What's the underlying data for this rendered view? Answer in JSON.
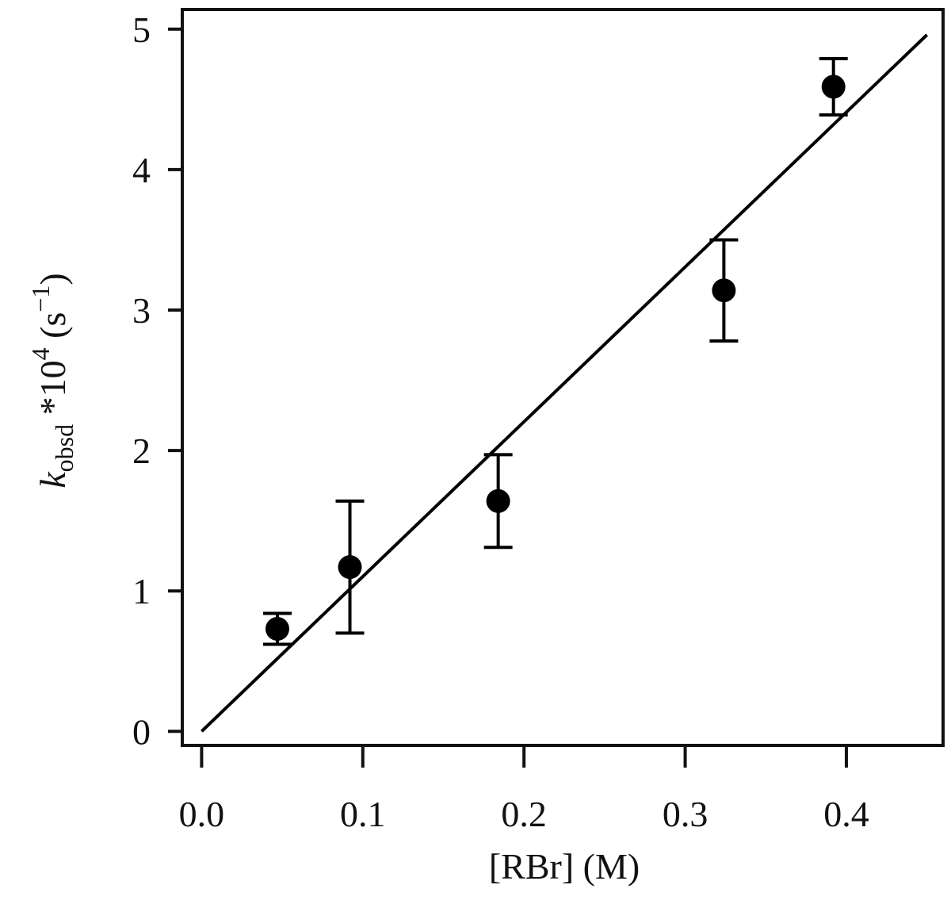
{
  "chart_data": {
    "type": "scatter",
    "x_label": "[RBr] (M)",
    "y_label": {
      "symbol": "k",
      "subscript": "obsd",
      "factor": " *10",
      "exponent": "4",
      "unit": " (s",
      "unit_exponent": "−1",
      "close": ")"
    },
    "points": {
      "x": [
        0.047,
        0.092,
        0.184,
        0.324,
        0.392
      ],
      "values": [
        0.73,
        1.17,
        1.64,
        3.14,
        4.59
      ],
      "errors": [
        0.11,
        0.47,
        0.33,
        0.36,
        0.2
      ],
      "color": "#000000"
    },
    "fit": {
      "x": [
        0,
        0.45
      ],
      "values": [
        0,
        4.96
      ],
      "color": "#000000"
    },
    "xlim": [
      -0.012,
      0.46
    ],
    "ylim": [
      -0.1,
      5.14
    ],
    "xticks": [
      {
        "value": 0,
        "label": "0.0"
      },
      0.1,
      0.2,
      0.3,
      0.4
    ],
    "yticks": [
      0,
      1,
      2,
      3,
      4,
      5
    ]
  }
}
